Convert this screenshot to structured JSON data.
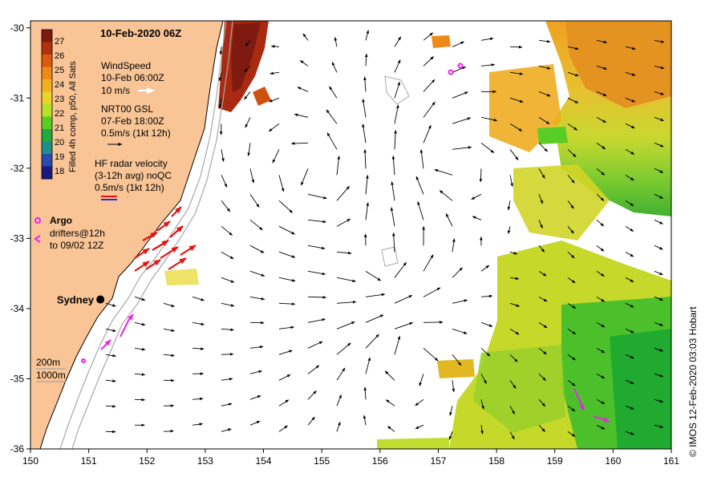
{
  "title": "10-Feb-2020 06Z",
  "colorbar": {
    "label": "Filled 4h comp, p50, All Sats",
    "ticks": [
      "27",
      "26",
      "25",
      "24",
      "23",
      "22",
      "21",
      "20",
      "19",
      "18"
    ],
    "colors": [
      "#7f1a10",
      "#b03010",
      "#dd5a10",
      "#ee8a18",
      "#f2b020",
      "#e9d52a",
      "#b8e02a",
      "#5acc28",
      "#20aa40",
      "#1f8f88",
      "#2a4ab0",
      "#1a1a80"
    ]
  },
  "legend": {
    "wind": {
      "title": "WindSpeed",
      "time": "10-Feb 06:00Z",
      "scale": "10 m/s"
    },
    "gsl": {
      "title": "NRT00 GSL",
      "time": "07-Feb 18:00Z",
      "scale": "0.5m/s (1kt 12h)"
    },
    "hf": {
      "title": "HF radar velocity",
      "subtitle": "(3-12h avg) noQC",
      "scale": "0.5m/s (1kt 12h)"
    },
    "argo": {
      "label": "Argo"
    },
    "drifters": {
      "line1": "drifters@12h",
      "line2": "to 09/02 12Z"
    },
    "isobaths": [
      "200m",
      "1000m"
    ]
  },
  "city": {
    "name": "Sydney",
    "lon": 151.2,
    "lat": -33.87
  },
  "credit": "© IMOS 12-Feb-2020 03:03 Hobart",
  "axes": {
    "x": {
      "min": 150,
      "max": 161,
      "ticks": [
        "150",
        "151",
        "152",
        "153",
        "154",
        "155",
        "156",
        "157",
        "158",
        "159",
        "160",
        "161"
      ]
    },
    "y": {
      "min": -36,
      "max": -29.9,
      "ticks": [
        "-30",
        "-31",
        "-32",
        "-33",
        "-34",
        "-35",
        "-36"
      ]
    }
  },
  "colors": {
    "land": "#f9c596",
    "ocean": "#ffffff",
    "hf_arrow": "#e81010",
    "drifter": "#ee22ee",
    "isobath": "#a8a8a8"
  }
}
